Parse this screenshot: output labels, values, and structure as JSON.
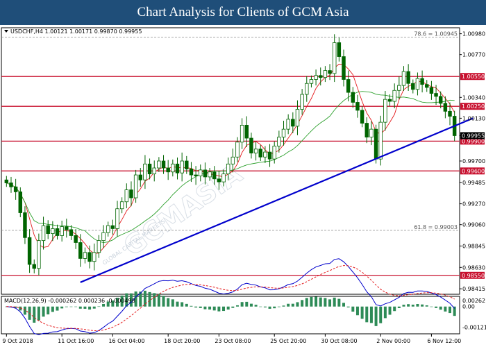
{
  "banner_title": "Chart Analysis for Clients of GCM Asia",
  "chart_data": [
    {
      "type": "candlestick",
      "symbol_header": "USDCHF,H4  1.00121 1.00171 0.99870 0.99955",
      "ylim": [
        0.9836,
        1.0104
      ],
      "y_ticks": [
        "1.00980",
        "1.00770",
        "1.00550",
        "1.00340",
        "1.00250",
        "1.00130",
        "0.99955",
        "0.99900",
        "0.99700",
        "0.99600",
        "0.99485",
        "0.99270",
        "0.99060",
        "0.98845",
        "0.98630",
        "0.98550",
        "0.98415"
      ],
      "x_ticks": [
        "9 Oct 2018",
        "11 Oct 16:00",
        "16 Oct 04:00",
        "18 Oct 20:00",
        "23 Oct 08:00",
        "25 Oct 20:00",
        "30 Oct 08:00",
        "2 Nov 00:00",
        "6 Nov 12:00"
      ],
      "last_price": 0.99955,
      "fib_levels": [
        {
          "label": "78.6 = 1.00945",
          "value": 1.00945
        },
        {
          "label": "61.8 = 0.99003",
          "value": 0.99003
        }
      ],
      "horizontal_levels": [
        {
          "label": "1.00550",
          "value": 1.0055
        },
        {
          "label": "1.00250",
          "value": 1.0025
        },
        {
          "label": "0.99900",
          "value": 0.999
        },
        {
          "label": "0.99600",
          "value": 0.996
        },
        {
          "label": "0.98550",
          "value": 0.9855
        }
      ],
      "trendline": {
        "from": {
          "bar": 16,
          "price": 0.9848
        },
        "to": {
          "bar": 101,
          "price": 1.0013
        }
      },
      "watermark": "GCMASIA",
      "watermark_sub": "GLOBAL CAPITAL MARKETS",
      "price_path": [
        0.9948,
        0.9944,
        0.9939,
        0.9918,
        0.9893,
        0.9866,
        0.9862,
        0.989,
        0.9905,
        0.9897,
        0.9902,
        0.9895,
        0.9904,
        0.9901,
        0.9895,
        0.9888,
        0.9872,
        0.9878,
        0.9869,
        0.9878,
        0.989,
        0.9898,
        0.9905,
        0.9902,
        0.9922,
        0.9929,
        0.9941,
        0.9933,
        0.9956,
        0.9951,
        0.9967,
        0.9957,
        0.9963,
        0.997,
        0.9963,
        0.9959,
        0.9967,
        0.9958,
        0.997,
        0.9962,
        0.9956,
        0.9955,
        0.9961,
        0.9954,
        0.9959,
        0.9952,
        0.9949,
        0.9957,
        0.9967,
        0.9974,
        0.9989,
        1.0006,
        0.9993,
        0.9978,
        0.9982,
        0.9974,
        0.9979,
        0.9972,
        0.9985,
        0.9994,
        1.0002,
        1.0012,
        1.0005,
        1.0022,
        1.0037,
        1.0048,
        1.0052,
        1.0056,
        1.0054,
        1.0061,
        1.0058,
        1.0089,
        1.0075,
        1.0052,
        1.0039,
        1.0029,
        1.0021,
        1.0008,
        0.9994,
        1.0002,
        0.9972,
        1.0009,
        1.0032,
        1.003,
        1.0041,
        1.0046,
        1.006,
        1.0048,
        1.0042,
        1.0053,
        1.0047,
        1.0044,
        1.0038,
        1.0035,
        1.0028,
        1.002,
        1.0015,
        0.99955
      ],
      "macd": {
        "label": "MACD(12,26,9) -0.000262 0.000236 -0.000498",
        "ylim": [
          -0.0016,
          0.0006
        ],
        "y_ticks": [
          "0.00262",
          "0.00",
          "-0.00121"
        ]
      },
      "colors": {
        "banner_bg": "#1f4e79",
        "resistance": "#c8102e",
        "trendline": "#0000cc",
        "ma_fast": "#e41a1c",
        "ma_slow": "#2ca02c",
        "candle": "#006400",
        "macd_signal": "#e41a1c",
        "macd_line": "#0000cc",
        "histogram": "#2e8b57"
      }
    }
  ]
}
